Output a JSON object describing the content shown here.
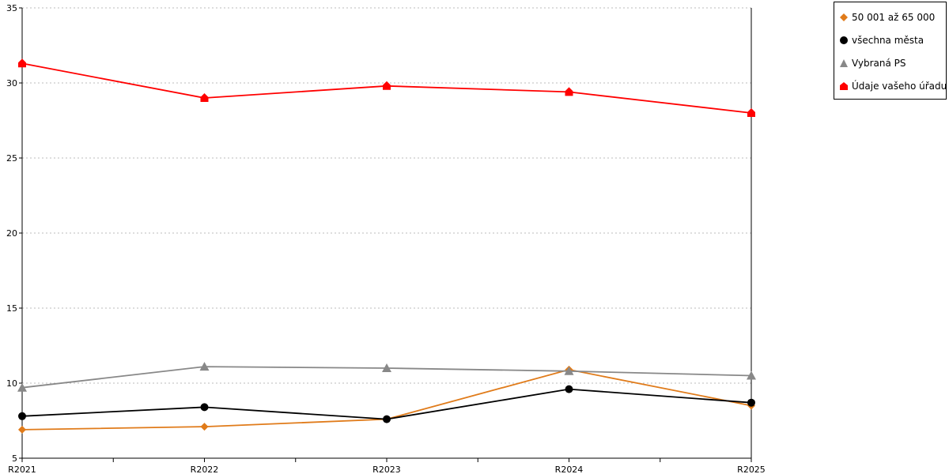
{
  "chart_data": {
    "type": "line",
    "categories": [
      "R2021",
      "R2022",
      "R2023",
      "R2024",
      "R2025"
    ],
    "ylim": [
      5,
      35
    ],
    "yticks": [
      5,
      10,
      15,
      20,
      25,
      30,
      35
    ],
    "grid": true,
    "legend_position": "top-right",
    "series": [
      {
        "name": "50 001 až 65 000",
        "color": "#e07b1a",
        "marker": "diamond",
        "values": [
          6.9,
          7.1,
          7.6,
          10.9,
          8.5
        ]
      },
      {
        "name": "všechna města",
        "color": "#000000",
        "marker": "circle",
        "values": [
          7.8,
          8.4,
          7.6,
          9.6,
          8.7
        ]
      },
      {
        "name": "Vybraná PS",
        "color": "#888888",
        "marker": "triangle",
        "values": [
          9.7,
          11.1,
          11.0,
          10.8,
          10.5
        ]
      },
      {
        "name": "Údaje vašeho úřadu",
        "color": "#ff0000",
        "marker": "house",
        "values": [
          31.3,
          29.0,
          29.8,
          29.4,
          28.0
        ]
      }
    ]
  }
}
